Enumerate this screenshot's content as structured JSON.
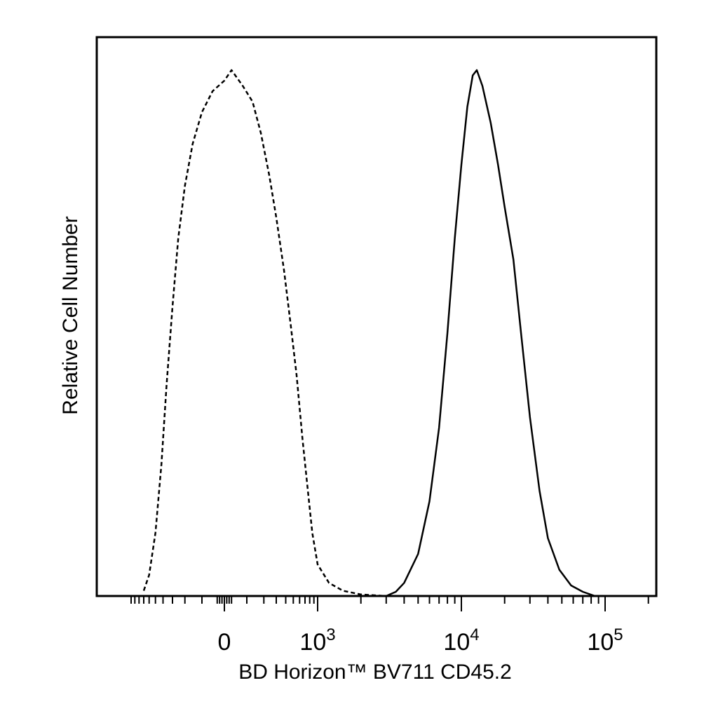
{
  "chart_data": {
    "type": "line",
    "title": "",
    "xlabel": "BD Horizon™ BV711 CD45.2",
    "ylabel": "Relative Cell Number",
    "x_scale": "biexponential",
    "y_axis_ticks_shown": false,
    "grid": false,
    "legend": "none",
    "x_ticks": [
      {
        "value": 0,
        "base": "0",
        "exp": ""
      },
      {
        "value": 1000,
        "base": "10",
        "exp": "3"
      },
      {
        "value": 10000,
        "base": "10",
        "exp": "4"
      },
      {
        "value": 100000,
        "base": "10",
        "exp": "5"
      }
    ],
    "xlim": [
      -1000,
      250000
    ],
    "ylim": [
      0,
      100
    ],
    "series": [
      {
        "style": "dashed",
        "color": "#000000",
        "points": [
          [
            -700,
            1
          ],
          [
            -600,
            4
          ],
          [
            -500,
            12
          ],
          [
            -420,
            25
          ],
          [
            -360,
            40
          ],
          [
            -300,
            55
          ],
          [
            -250,
            68
          ],
          [
            -200,
            78
          ],
          [
            -150,
            86
          ],
          [
            -100,
            92
          ],
          [
            -50,
            96
          ],
          [
            0,
            98
          ],
          [
            30,
            100
          ],
          [
            80,
            97
          ],
          [
            130,
            94
          ],
          [
            180,
            88
          ],
          [
            240,
            80
          ],
          [
            300,
            72
          ],
          [
            380,
            62
          ],
          [
            460,
            52
          ],
          [
            550,
            42
          ],
          [
            650,
            30
          ],
          [
            760,
            20
          ],
          [
            860,
            12
          ],
          [
            1000,
            6
          ],
          [
            1200,
            2.5
          ],
          [
            1500,
            1
          ],
          [
            2000,
            0.3
          ],
          [
            3000,
            0
          ]
        ]
      },
      {
        "style": "solid",
        "color": "#000000",
        "points": [
          [
            3000,
            0
          ],
          [
            3500,
            0.8
          ],
          [
            4000,
            2.5
          ],
          [
            5000,
            8
          ],
          [
            6000,
            18
          ],
          [
            7000,
            32
          ],
          [
            8000,
            50
          ],
          [
            9000,
            68
          ],
          [
            10000,
            82
          ],
          [
            11000,
            93
          ],
          [
            12000,
            99
          ],
          [
            12800,
            100
          ],
          [
            14000,
            97
          ],
          [
            16000,
            90
          ],
          [
            18000,
            82
          ],
          [
            20000,
            74
          ],
          [
            23000,
            64
          ],
          [
            26000,
            50
          ],
          [
            30000,
            34
          ],
          [
            35000,
            20
          ],
          [
            40000,
            11
          ],
          [
            48000,
            5
          ],
          [
            58000,
            2
          ],
          [
            70000,
            0.8
          ],
          [
            85000,
            0
          ]
        ]
      }
    ]
  }
}
